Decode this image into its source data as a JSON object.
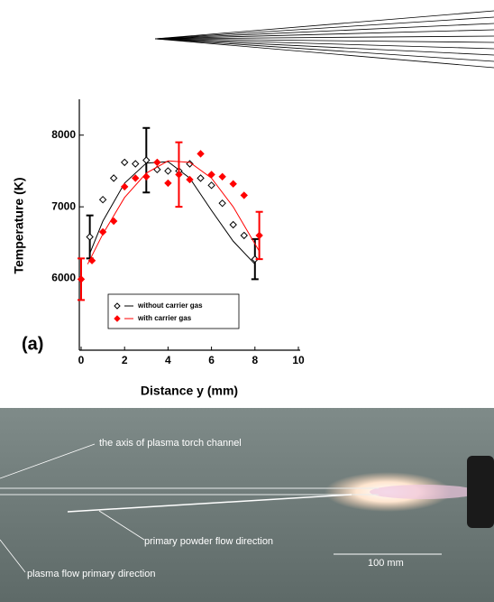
{
  "chart_data": {
    "type": "scatter",
    "annotation": "(a)",
    "x_label": "Distance y (mm)",
    "y_label": "Temperature (K)",
    "xlim": [
      0,
      10
    ],
    "xticks": [
      0,
      2,
      4,
      6,
      8,
      10
    ],
    "ylim": [
      5000,
      8500
    ],
    "yticks": [
      6000,
      7000,
      8000
    ],
    "legend": "bottom-left",
    "series": [
      {
        "name": "without carrier gas",
        "color": "#000000",
        "marker": "open-diamond",
        "x": [
          0.4,
          1,
          1.5,
          2,
          2.5,
          3,
          3.5,
          4,
          4.5,
          5,
          5.5,
          6,
          6.5,
          7,
          7.5,
          8
        ],
        "values": [
          6580,
          7100,
          7400,
          7620,
          7600,
          7650,
          7520,
          7500,
          7500,
          7600,
          7400,
          7300,
          7050,
          6750,
          6600,
          6270
        ],
        "errors": [
          300,
          null,
          null,
          null,
          null,
          450,
          null,
          null,
          null,
          null,
          null,
          null,
          null,
          null,
          null,
          280
        ],
        "trend_x": [
          0.4,
          1,
          2,
          3,
          4,
          5,
          6,
          7,
          8
        ],
        "trend_values": [
          6350,
          6800,
          7330,
          7610,
          7630,
          7400,
          6950,
          6520,
          6200
        ]
      },
      {
        "name": "with carrier gas",
        "color": "#ff0000",
        "marker": "filled-diamond",
        "x": [
          0,
          0.5,
          1,
          1.5,
          2,
          2.5,
          3,
          3.5,
          4,
          4.5,
          5,
          5.5,
          6,
          6.5,
          7,
          7.5,
          8.2
        ],
        "values": [
          5990,
          6250,
          6650,
          6800,
          7280,
          7400,
          7420,
          7620,
          7330,
          7450,
          7380,
          7740,
          7450,
          7420,
          7320,
          7160,
          6600
        ],
        "errors": [
          290,
          null,
          null,
          null,
          null,
          null,
          null,
          null,
          null,
          450,
          null,
          null,
          null,
          null,
          null,
          null,
          330
        ],
        "trend_x": [
          0.3,
          1,
          2,
          3,
          4,
          5,
          6,
          7,
          8.2
        ],
        "trend_values": [
          6200,
          6620,
          7130,
          7470,
          7640,
          7620,
          7400,
          7000,
          6380
        ]
      }
    ]
  },
  "photo": {
    "labels": {
      "axis": "the axis of plasma torch channel",
      "powder": "primary powder flow direction",
      "plasma": "plasma flow primary direction",
      "scale": "100 mm"
    }
  }
}
